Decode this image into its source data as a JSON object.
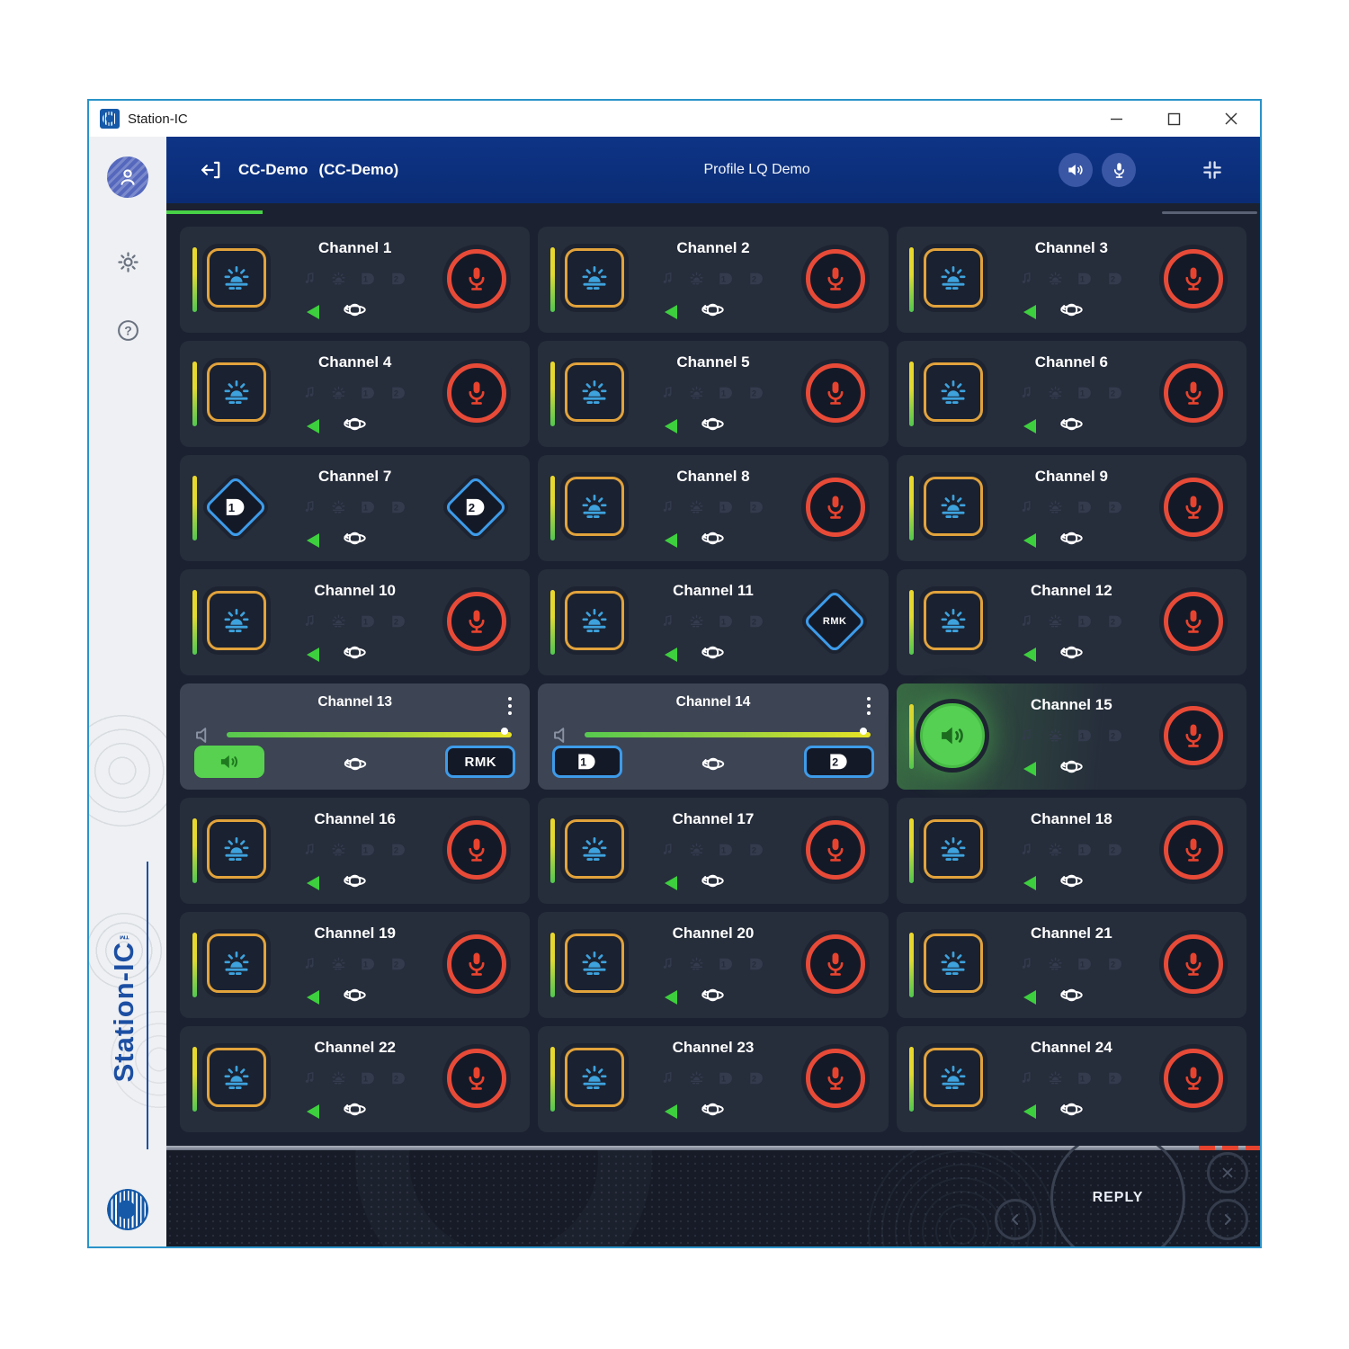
{
  "window": {
    "title": "Station-IC",
    "controls": {
      "minimize": "minimize",
      "maximize": "maximize",
      "close": "close"
    }
  },
  "sidebar": {
    "brand": "Station-IC",
    "trademark": "TM",
    "icons": [
      "user-icon",
      "gear-icon",
      "help-icon",
      "clearcom-logo"
    ]
  },
  "header": {
    "back_icon": "back-exit-icon",
    "connection_name": "CC-Demo",
    "connection_suffix": "(CC-Demo)",
    "profile_title": "Profile LQ Demo",
    "speaker_button_icon": "speaker-icon",
    "mic_button_icon": "microphone-icon",
    "compress_icon": "exit-fullscreen-icon"
  },
  "channels": [
    {
      "name": "Channel 1",
      "type": "standard"
    },
    {
      "name": "Channel 2",
      "type": "standard"
    },
    {
      "name": "Channel 3",
      "type": "standard"
    },
    {
      "name": "Channel 4",
      "type": "standard"
    },
    {
      "name": "Channel 5",
      "type": "standard"
    },
    {
      "name": "Channel 6",
      "type": "standard"
    },
    {
      "name": "Channel 7",
      "type": "dial_diamonds",
      "left_dial": "1",
      "right_dial": "2"
    },
    {
      "name": "Channel 8",
      "type": "standard"
    },
    {
      "name": "Channel 9",
      "type": "standard"
    },
    {
      "name": "Channel 10",
      "type": "standard"
    },
    {
      "name": "Channel 11",
      "type": "rmk_diamond",
      "diamond_label": "RMK"
    },
    {
      "name": "Channel 12",
      "type": "standard"
    },
    {
      "name": "Channel 13",
      "type": "expanded_rmk",
      "volume_percent": 100,
      "right_button_label": "RMK"
    },
    {
      "name": "Channel 14",
      "type": "expanded_dials",
      "volume_percent": 100,
      "left_dial": "1",
      "right_dial": "2"
    },
    {
      "name": "Channel 15",
      "type": "active_listen"
    },
    {
      "name": "Channel 16",
      "type": "standard"
    },
    {
      "name": "Channel 17",
      "type": "standard"
    },
    {
      "name": "Channel 18",
      "type": "standard"
    },
    {
      "name": "Channel 19",
      "type": "standard"
    },
    {
      "name": "Channel 20",
      "type": "standard"
    },
    {
      "name": "Channel 21",
      "type": "standard"
    },
    {
      "name": "Channel 22",
      "type": "standard"
    },
    {
      "name": "Channel 23",
      "type": "standard"
    },
    {
      "name": "Channel 24",
      "type": "standard"
    }
  ],
  "footer": {
    "reply_label": "REPLY",
    "prev_icon": "chevron-left-icon",
    "next_icon": "chevron-right-icon",
    "dismiss_icon": "close-icon"
  },
  "colors": {
    "header_blue": "#0d3182",
    "content_bg": "#1b2130",
    "card_bg": "#262d3b",
    "expanded_card_bg": "#3d4454",
    "talk_red": "#e84a38",
    "listen_border_orange": "#e2a33c",
    "listen_icon_blue": "#3ea2dd",
    "diamond_blue": "#3d9be9",
    "active_green": "#55d053",
    "indicator_green": "#3ecf3e",
    "meter_yellow": "#ead72c",
    "meter_green": "#52c74f",
    "slider_thumb_blue": "#1d8fe0",
    "sidebar_bg": "#eef0f3",
    "brand_blue": "#1c4fa3",
    "window_border": "#2a93c9"
  }
}
